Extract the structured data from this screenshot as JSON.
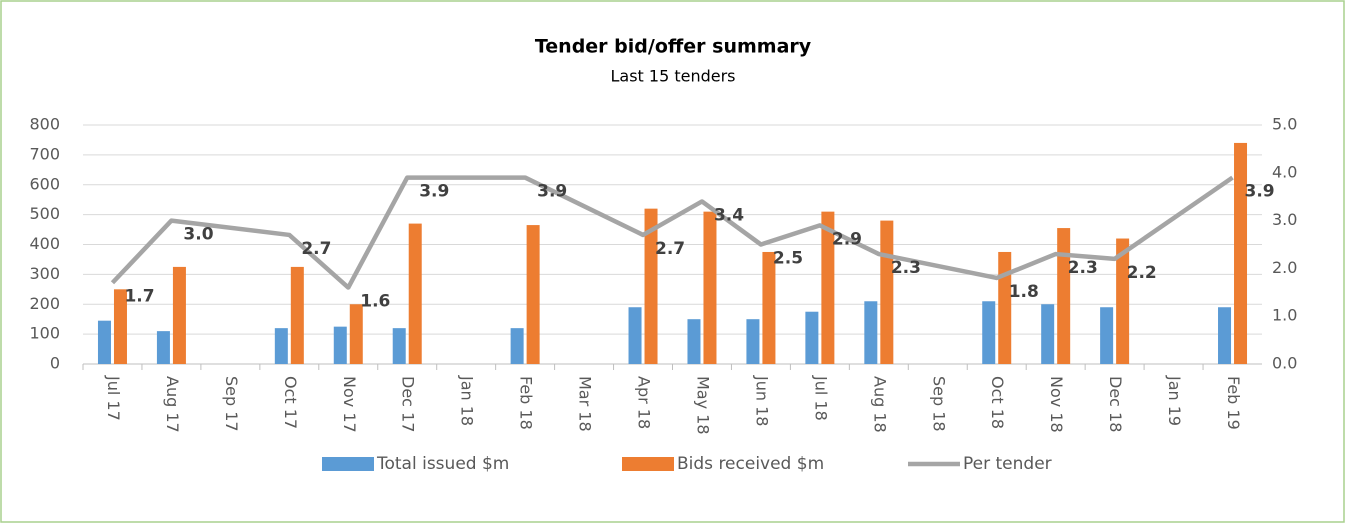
{
  "chart_data": {
    "type": "combo",
    "title": "Tender bid/offer summary",
    "subtitle": "Last 15 tenders",
    "categories": [
      "Jul 17",
      "Aug 17",
      "Sep 17",
      "Oct 17",
      "Nov 17",
      "Dec 17",
      "Jan 18",
      "Feb 18",
      "Mar 18",
      "Apr 18",
      "May 18",
      "Jun 18",
      "Jul 18",
      "Aug 18",
      "Sep 18",
      "Oct 18",
      "Nov 18",
      "Dec 18",
      "Jan 19",
      "Feb 19"
    ],
    "series": [
      {
        "name": "Total issued $m",
        "type": "bar",
        "color": "#5b9bd5",
        "values": [
          145,
          110,
          null,
          120,
          125,
          120,
          null,
          120,
          null,
          190,
          150,
          150,
          175,
          210,
          null,
          210,
          200,
          190,
          null,
          190
        ]
      },
      {
        "name": "Bids received $m",
        "type": "bar",
        "color": "#ed7d31",
        "values": [
          250,
          325,
          null,
          325,
          200,
          470,
          null,
          465,
          null,
          520,
          510,
          375,
          510,
          480,
          null,
          375,
          455,
          420,
          null,
          740
        ]
      },
      {
        "name": "Per tender",
        "type": "line",
        "axis": "y2",
        "color": "#a5a5a5",
        "connect_gaps": true,
        "values": [
          1.7,
          3.0,
          null,
          2.7,
          1.6,
          3.9,
          null,
          3.9,
          null,
          2.7,
          3.4,
          2.5,
          2.9,
          2.3,
          null,
          1.8,
          2.3,
          2.2,
          null,
          3.9
        ],
        "value_labels": [
          "1.7",
          "3.0",
          null,
          "2.7",
          "1.6",
          "3.9",
          null,
          "3.9",
          null,
          "2.7",
          "3.4",
          "2.5",
          "2.9",
          "2.3",
          null,
          "1.8",
          "2.3",
          "2.2",
          null,
          "3.9"
        ]
      }
    ],
    "ylim": [
      0,
      800
    ],
    "yticks": [
      0,
      100,
      200,
      300,
      400,
      500,
      600,
      700,
      800
    ],
    "y2lim": [
      0,
      5
    ],
    "y2ticks": [
      {
        "value": 0,
        "label": "0.0"
      },
      {
        "value": 1,
        "label": "1.0"
      },
      {
        "value": 2,
        "label": "2.0"
      },
      {
        "value": 3,
        "label": "3.0"
      },
      {
        "value": 4,
        "label": "4.0"
      },
      {
        "value": 5,
        "label": "5.0"
      }
    ],
    "grid": true,
    "legend": "bottom"
  }
}
